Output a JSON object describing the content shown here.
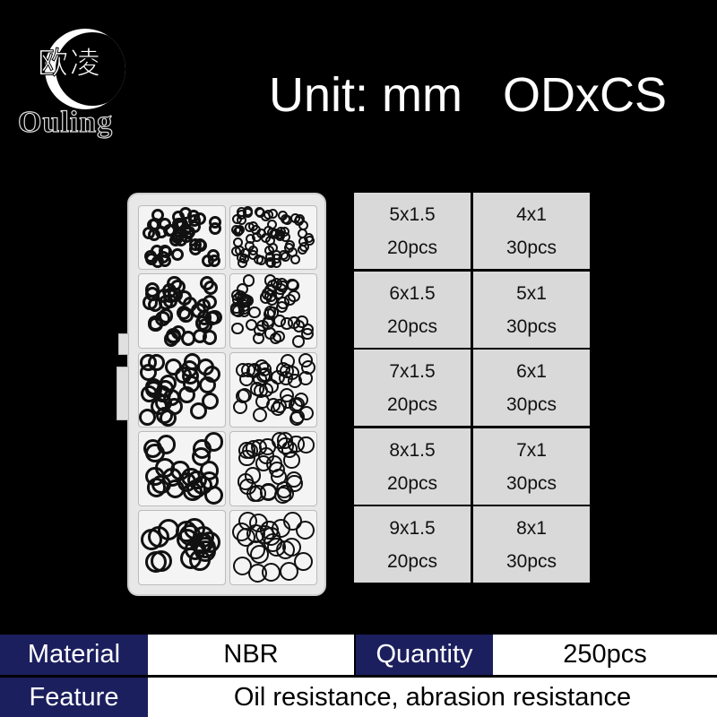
{
  "logo": {
    "chars": "欧凌",
    "name": "Ouling"
  },
  "headline": "Unit: mm   ODxCS",
  "sizes": [
    {
      "size": "5x1.5",
      "qty": "20pcs"
    },
    {
      "size": "4x1",
      "qty": "30pcs"
    },
    {
      "size": "6x1.5",
      "qty": "20pcs"
    },
    {
      "size": "5x1",
      "qty": "30pcs"
    },
    {
      "size": "7x1.5",
      "qty": "20pcs"
    },
    {
      "size": "6x1",
      "qty": "30pcs"
    },
    {
      "size": "8x1.5",
      "qty": "20pcs"
    },
    {
      "size": "7x1",
      "qty": "30pcs"
    },
    {
      "size": "9x1.5",
      "qty": "20pcs"
    },
    {
      "size": "8x1",
      "qty": "30pcs"
    }
  ],
  "specs": {
    "material_label": "Material",
    "material_value": "NBR",
    "quantity_label": "Quantity",
    "quantity_value": "250pcs",
    "feature_label": "Feature",
    "feature_value": "Oil resistance, abrasion resistance"
  },
  "colors": {
    "label_bg": "#1b1f5e",
    "size_cell_bg": "#d9d9d9",
    "background": "#000000"
  }
}
